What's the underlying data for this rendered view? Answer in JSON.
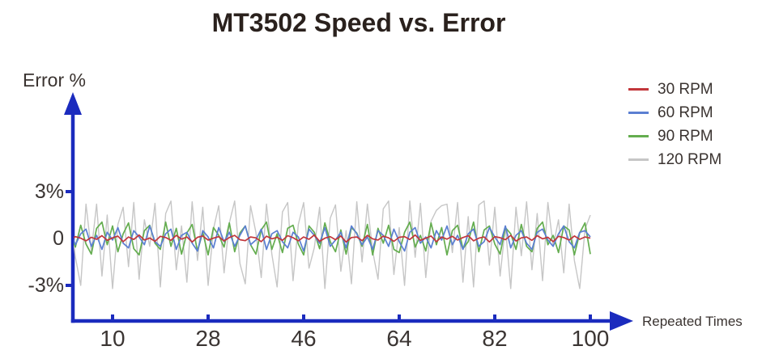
{
  "colors": {
    "axis": "#1b2bbe",
    "title_text": "#2a211d",
    "tick_text": "#3b3533",
    "label_text": "#3a3330",
    "background": "#ffffff"
  },
  "chart_data": {
    "type": "line",
    "title": "MT3502 Speed vs. Error",
    "xlabel": "Repeated Times",
    "ylabel": "Error %",
    "grid": false,
    "legend_position": "right",
    "xlim": [
      1,
      100
    ],
    "ylim": [
      -3.5,
      3.5
    ],
    "x_ticks": [
      10,
      28,
      46,
      64,
      82,
      100
    ],
    "y_ticks": [
      {
        "value": 3,
        "label": "3%"
      },
      {
        "value": 0,
        "label": "0"
      },
      {
        "value": -3,
        "label": "-3%"
      }
    ],
    "x_min": 1,
    "x_max": 100,
    "n_points": 100,
    "series": [
      {
        "name": "30 RPM",
        "color": "#c2363b",
        "values": [
          0.05,
          -0.1,
          0.12,
          0.02,
          -0.15,
          0.08,
          -0.05,
          0.18,
          -0.12,
          0.04,
          0.15,
          -0.2,
          0.1,
          -0.06,
          0.22,
          -0.1,
          0.03,
          -0.18,
          0.14,
          0.06,
          -0.12,
          0.2,
          -0.04,
          0.1,
          -0.22,
          0.08,
          0.16,
          -0.1,
          0.02,
          0.12,
          -0.16,
          0.06,
          0.2,
          -0.08,
          -0.14,
          0.1,
          0.04,
          -0.2,
          0.15,
          -0.02,
          0.08,
          -0.12,
          0.18,
          0.05,
          -0.15,
          0.1,
          -0.05,
          0.22,
          -0.18,
          0.02,
          0.12,
          -0.08,
          0.16,
          -0.22,
          0.06,
          0.1,
          -0.14,
          0.2,
          -0.02,
          -0.1,
          0.15,
          0.04,
          -0.18,
          0.08,
          0.12,
          -0.06,
          0.22,
          -0.12,
          0.02,
          0.16,
          -0.2,
          0.1,
          -0.04,
          0.14,
          -0.1,
          0.06,
          0.18,
          -0.15,
          0.02,
          0.1,
          -0.22,
          0.12,
          0.05,
          -0.08,
          0.2,
          -0.16,
          0.04,
          0.1,
          -0.12,
          0.18,
          -0.02,
          0.08,
          -0.2,
          0.14,
          0.06,
          -0.1,
          0.16,
          -0.05,
          0.1,
          0.02
        ]
      },
      {
        "name": "60 RPM",
        "color": "#5b7fd2",
        "values": [
          -0.2,
          0.5,
          -0.4,
          0.3,
          0.6,
          -0.5,
          0.2,
          -0.7,
          0.4,
          -0.1,
          0.7,
          -0.3,
          -0.6,
          0.5,
          0.1,
          -0.4,
          0.8,
          -0.2,
          -0.5,
          0.3,
          0.6,
          -0.7,
          0.2,
          0.4,
          -0.3,
          -0.8,
          0.5,
          0.1,
          -0.6,
          0.7,
          -0.2,
          0.4,
          -0.5,
          0.2,
          0.8,
          -0.4,
          -0.1,
          0.6,
          -0.7,
          0.3,
          0.5,
          -0.2,
          -0.6,
          0.4,
          0.1,
          -0.8,
          0.6,
          0.2,
          -0.3,
          0.7,
          -0.5,
          -0.1,
          0.4,
          -0.6,
          0.8,
          0.3,
          -0.4,
          0.1,
          -0.7,
          0.5,
          0.2,
          -0.5,
          0.6,
          -0.2,
          -0.8,
          0.4,
          0.7,
          -0.3,
          0.1,
          -0.6,
          0.5,
          -0.1,
          0.8,
          -0.4,
          0.2,
          -0.7,
          0.3,
          0.6,
          -0.5,
          -0.2,
          0.7,
          0.1,
          -0.4,
          0.8,
          -0.6,
          0.2,
          0.5,
          -0.3,
          -0.7,
          0.4,
          0.6,
          -0.1,
          -0.5,
          0.3,
          0.8,
          -0.2,
          -0.6,
          0.4,
          0.5,
          0.1
        ]
      },
      {
        "name": "90 RPM",
        "color": "#64ad4f",
        "values": [
          0.2,
          0.35,
          -0.55,
          0.85,
          -0.35,
          -1.0,
          0.65,
          1.05,
          -0.4,
          0.8,
          -0.85,
          0.3,
          1.0,
          -0.65,
          -1.05,
          0.5,
          0.85,
          -0.3,
          -0.7,
          1.05,
          -0.5,
          0.65,
          -1.0,
          0.35,
          0.9,
          -0.8,
          0.4,
          -1.05,
          0.7,
          0.2,
          -0.55,
          1.0,
          -0.85,
          0.35,
          0.8,
          -0.4,
          -1.0,
          0.55,
          1.05,
          -0.7,
          0.3,
          -0.9,
          0.65,
          0.85,
          -0.35,
          -1.05,
          0.8,
          0.4,
          -0.65,
          1.0,
          -0.2,
          -0.85,
          0.55,
          -1.0,
          0.7,
          0.35,
          -0.5,
          0.9,
          -1.05,
          0.65,
          -0.3,
          0.85,
          -0.7,
          -0.9,
          0.4,
          1.05,
          -0.55,
          0.2,
          -0.8,
          1.0,
          -0.4,
          0.7,
          -1.05,
          0.5,
          0.85,
          -0.65,
          -0.2,
          1.05,
          -0.85,
          0.55,
          0.8,
          -0.35,
          -1.0,
          0.7,
          0.3,
          -0.7,
          0.9,
          -0.5,
          -0.85,
          0.65,
          1.05,
          -0.4,
          0.2,
          -0.9,
          0.8,
          0.55,
          -1.05,
          0.35,
          1.0,
          -1.0
        ]
      },
      {
        "name": "120 RPM",
        "color": "#c6c6c6",
        "values": [
          0.5,
          1.8,
          -1.2,
          -3.0,
          2.2,
          -0.8,
          2.2,
          -2.4,
          1.5,
          -3.2,
          0.9,
          2.0,
          -1.8,
          2.3,
          -2.6,
          1.2,
          -0.5,
          2.25,
          -3.1,
          1.6,
          2.4,
          -2.0,
          0.8,
          -2.8,
          2.35,
          -1.4,
          2.0,
          -3.0,
          0.6,
          2.1,
          -2.2,
          1.0,
          2.4,
          -1.6,
          -2.9,
          2.1,
          0.4,
          -2.5,
          2.2,
          -1.0,
          -3.1,
          1.7,
          2.3,
          -2.7,
          0.9,
          2.3,
          -1.9,
          -0.6,
          2.0,
          -3.2,
          1.3,
          2.15,
          -2.1,
          0.5,
          -2.9,
          2.35,
          -1.5,
          2.2,
          -0.8,
          -2.6,
          1.9,
          2.4,
          -2.3,
          0.7,
          -3.0,
          2.4,
          -1.2,
          2.25,
          -2.5,
          1.1,
          1.8,
          2.1,
          2.2,
          -0.9,
          2.3,
          -2.8,
          1.4,
          -3.1,
          2.15,
          2.4,
          -1.7,
          2.0,
          -2.4,
          0.8,
          -3.2,
          2.0,
          -1.1,
          2.35,
          -2.0,
          1.6,
          -2.7,
          2.3,
          -0.5,
          1.2,
          -2.2,
          2.2,
          -1.4,
          -3.2,
          0.6,
          1.5
        ]
      }
    ]
  }
}
